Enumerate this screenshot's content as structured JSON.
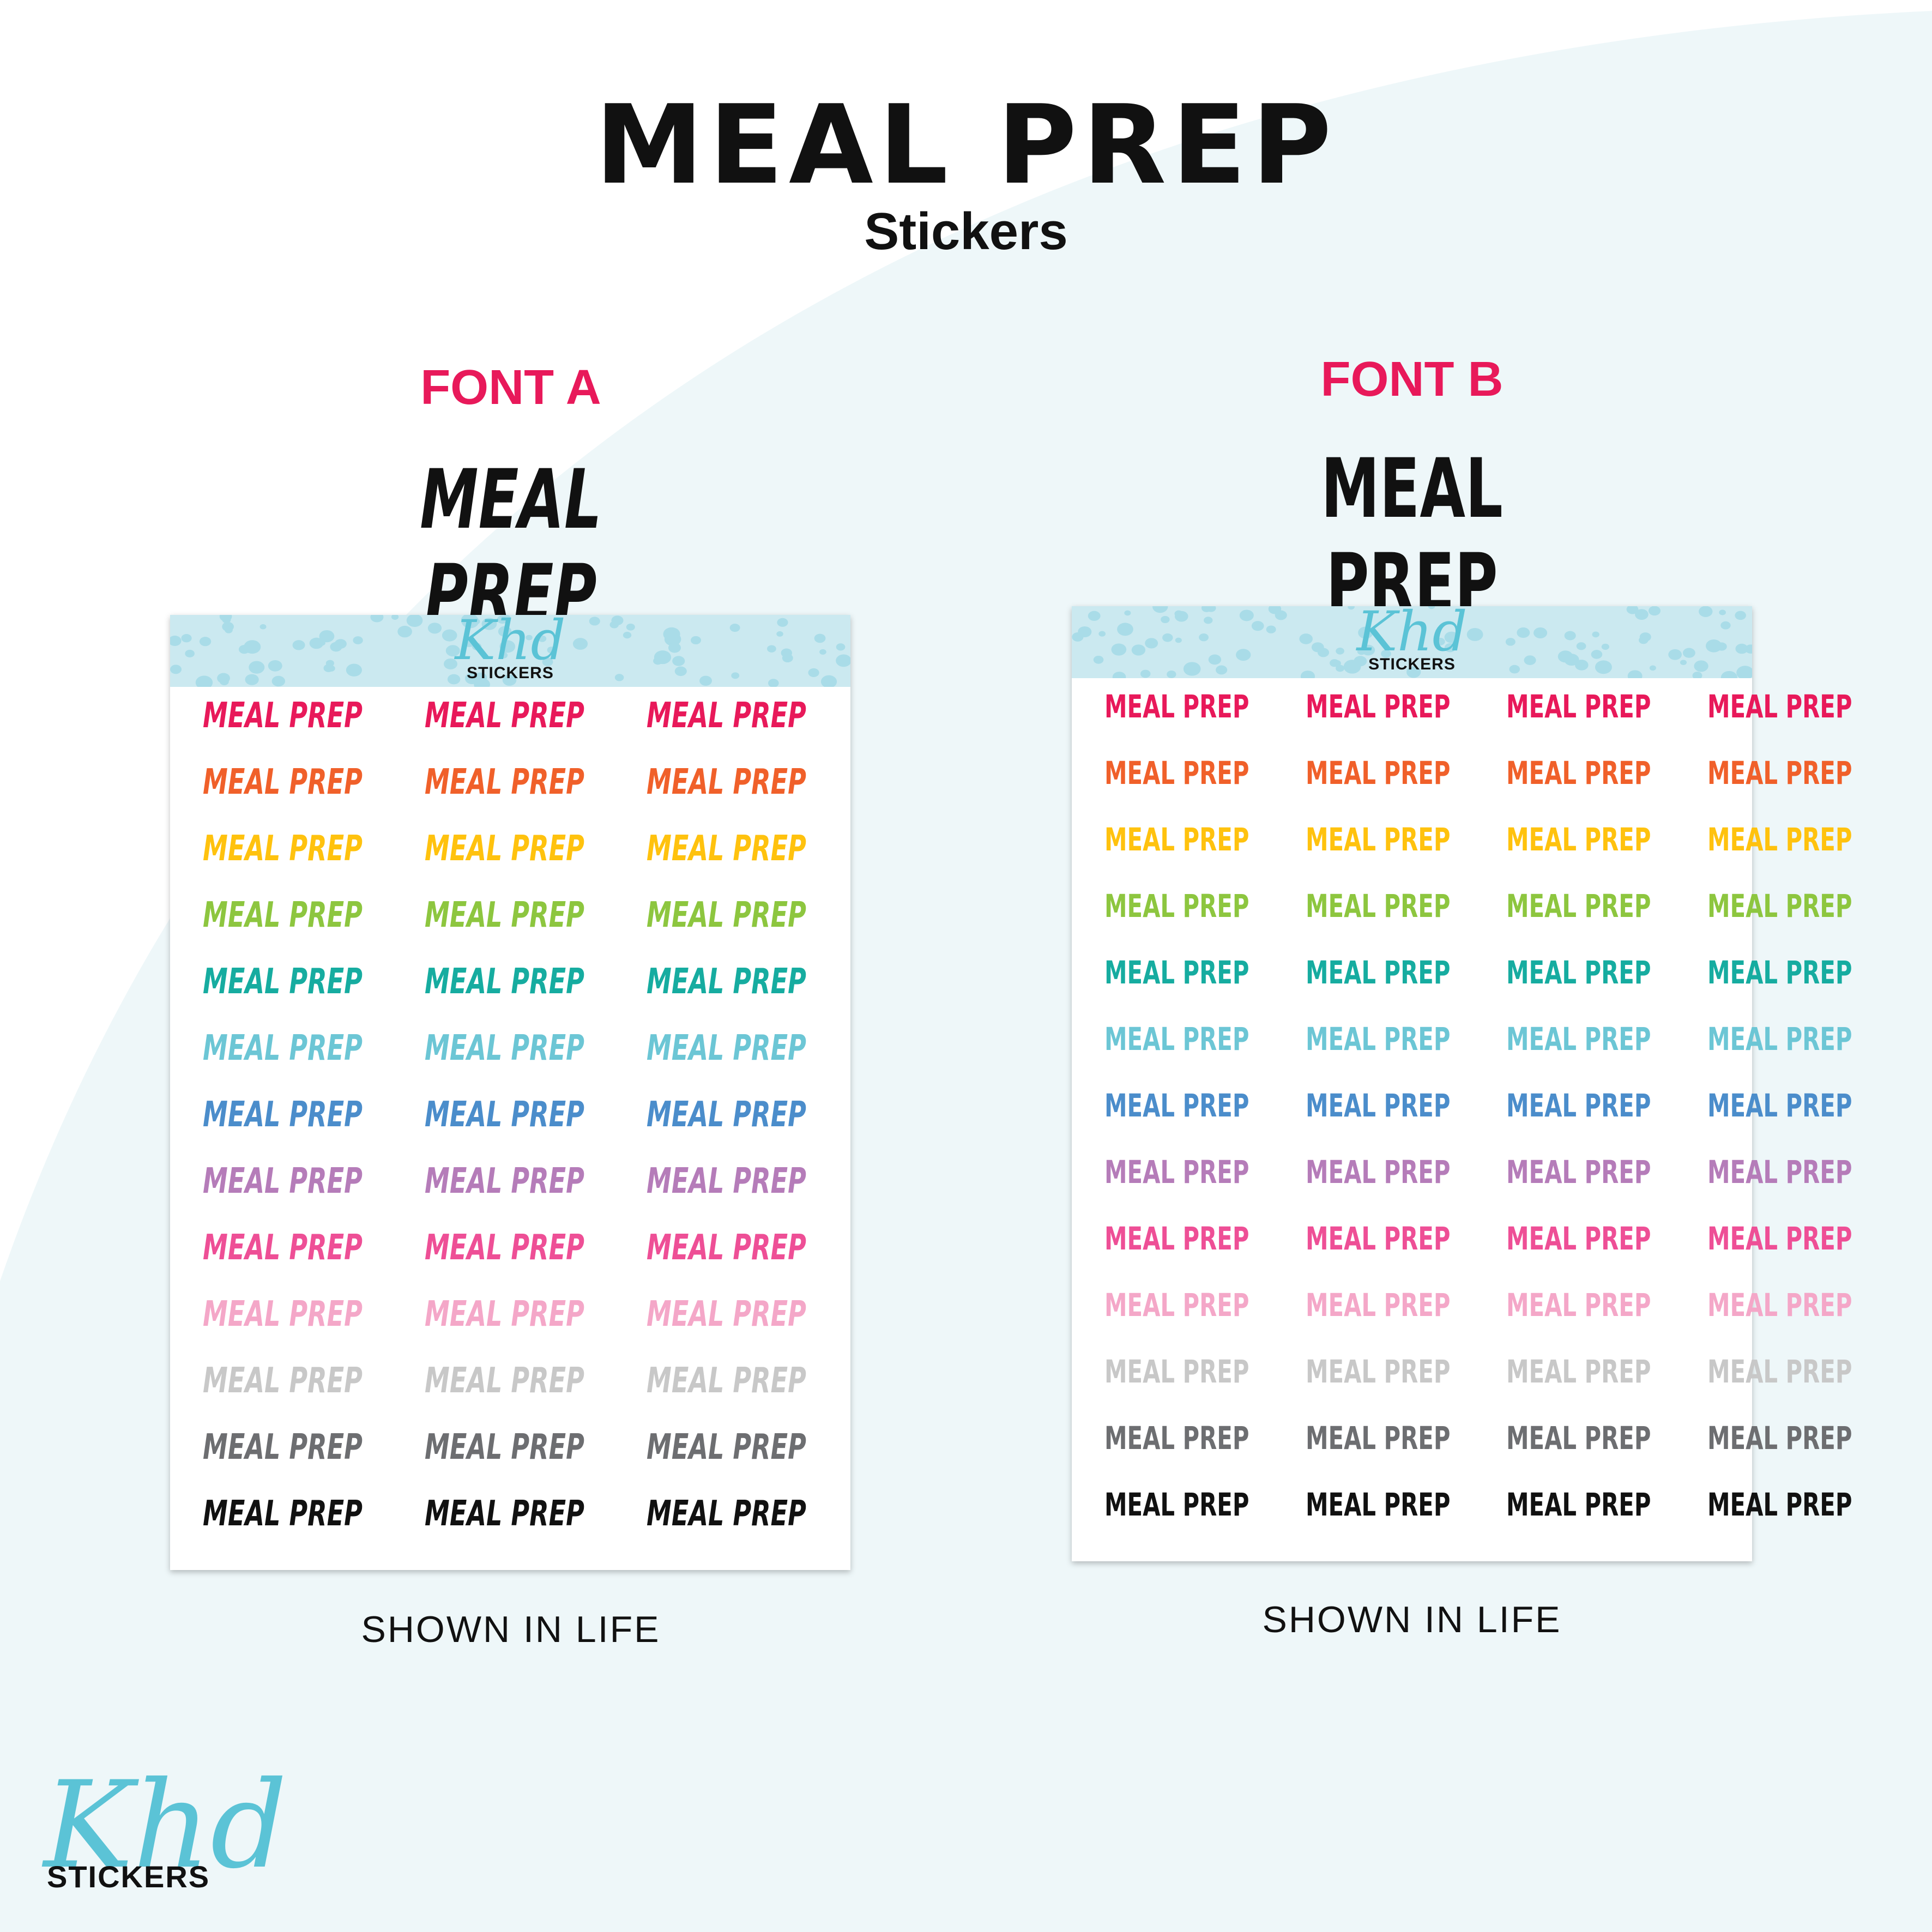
{
  "header": {
    "title": "MEAL PREP",
    "subtitle": "Stickers"
  },
  "colors": {
    "accent": "#e8195a",
    "background": "#eef7f9",
    "arc": "#ffffff",
    "logo": "#5bc3d6",
    "sheet_header": "#cbe9f0",
    "dot": "#a9dce8",
    "sticker_rows": [
      "#e8195a",
      "#f0602a",
      "#ffc20e",
      "#8dc63f",
      "#16aca0",
      "#6cc6d5",
      "#4b8dcb",
      "#b57cb9",
      "#ee4f96",
      "#f4a7c8",
      "#c8c8c8",
      "#6d6e71",
      "#111111"
    ]
  },
  "font_a": {
    "label": "FONT A",
    "sample": "MEAL PREP",
    "sheet": {
      "logo_script": "Khd",
      "logo_word": "STICKERS",
      "columns": 3,
      "sticker_text": "MEAL PREP"
    },
    "caption": "SHOWN IN LIFE"
  },
  "font_b": {
    "label": "FONT B",
    "sample": "MEAL PREP",
    "sheet": {
      "logo_script": "Khd",
      "logo_word": "STICKERS",
      "columns": 4,
      "sticker_text": "MEAL PREP"
    },
    "caption": "SHOWN IN LIFE"
  },
  "brand": {
    "script": "Khd",
    "word": "STICKERS"
  }
}
